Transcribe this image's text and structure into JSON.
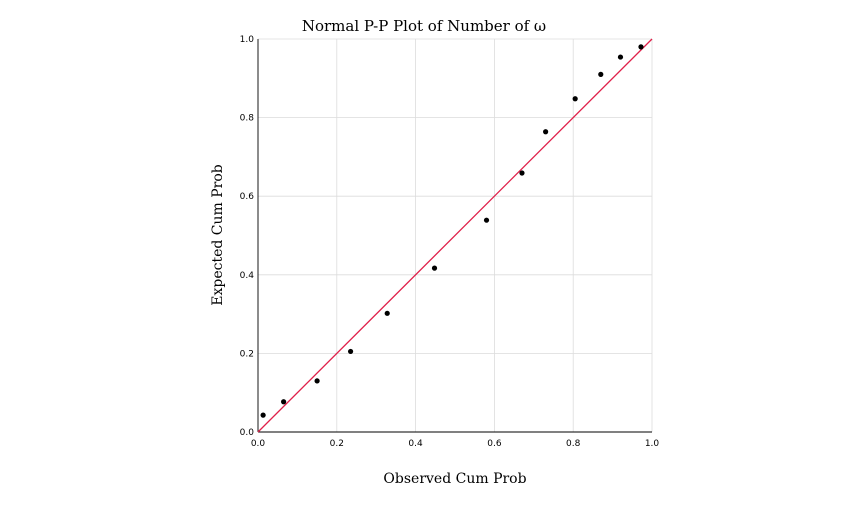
{
  "chart_data": {
    "type": "scatter",
    "title": "Normal P-P Plot of Number of ω",
    "xlabel": "Observed Cum Prob",
    "ylabel": "Expected Cum Prob",
    "xlim": [
      0,
      1
    ],
    "ylim": [
      0,
      1
    ],
    "xticks": [
      "0.0",
      "0.2",
      "0.4",
      "0.6",
      "0.8",
      "1.0"
    ],
    "yticks": [
      "0.0",
      "0.2",
      "0.4",
      "0.6",
      "0.8",
      "1.0"
    ],
    "grid": true,
    "reference_line": {
      "from": [
        0,
        0
      ],
      "to": [
        1,
        1
      ],
      "color": "#e0204a"
    },
    "point_color": "#000000",
    "points": [
      {
        "x": 0.013,
        "y": 0.043
      },
      {
        "x": 0.065,
        "y": 0.077
      },
      {
        "x": 0.15,
        "y": 0.13
      },
      {
        "x": 0.235,
        "y": 0.205
      },
      {
        "x": 0.328,
        "y": 0.302
      },
      {
        "x": 0.448,
        "y": 0.417
      },
      {
        "x": 0.58,
        "y": 0.539
      },
      {
        "x": 0.67,
        "y": 0.659
      },
      {
        "x": 0.73,
        "y": 0.764
      },
      {
        "x": 0.805,
        "y": 0.848
      },
      {
        "x": 0.87,
        "y": 0.91
      },
      {
        "x": 0.92,
        "y": 0.954
      },
      {
        "x": 0.972,
        "y": 0.98
      }
    ]
  }
}
